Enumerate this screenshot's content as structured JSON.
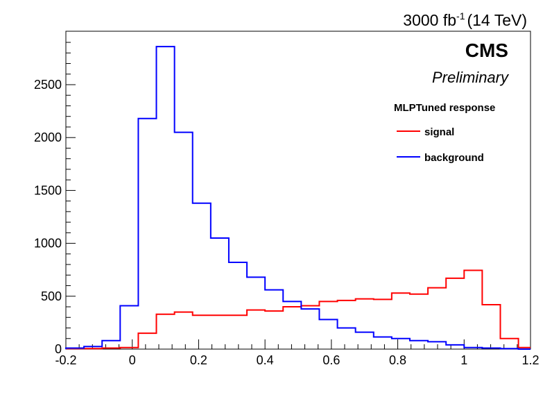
{
  "chart_data": {
    "type": "histogram",
    "title": "",
    "xlabel": "",
    "ylabel": "",
    "xlim": [
      -0.2,
      1.2
    ],
    "ylim": [
      0,
      3000
    ],
    "x_ticks": [
      "-0.2",
      "0",
      "0.2",
      "0.4",
      "0.6",
      "0.8",
      "1",
      "1.2"
    ],
    "y_ticks": [
      "0",
      "500",
      "1000",
      "1500",
      "2000",
      "2500"
    ],
    "bin_edges": [
      -0.2,
      -0.1455,
      -0.0909,
      -0.0364,
      0.0182,
      0.0727,
      0.1273,
      0.1818,
      0.2364,
      0.2909,
      0.3455,
      0.4,
      0.4545,
      0.5091,
      0.5636,
      0.6182,
      0.6727,
      0.7273,
      0.7818,
      0.8364,
      0.8909,
      0.9455,
      1.0,
      1.0545,
      1.1091,
      1.1636,
      1.2
    ],
    "series": [
      {
        "name": "signal",
        "color": "#ff0000",
        "values": [
          5,
          5,
          10,
          15,
          150,
          330,
          350,
          320,
          320,
          320,
          370,
          360,
          400,
          410,
          450,
          460,
          475,
          470,
          530,
          520,
          580,
          670,
          745,
          420,
          100,
          15
        ]
      },
      {
        "name": "background",
        "color": "#0000ff",
        "values": [
          10,
          25,
          80,
          410,
          2180,
          2860,
          2050,
          1380,
          1050,
          820,
          680,
          560,
          450,
          380,
          280,
          200,
          160,
          115,
          100,
          80,
          70,
          40,
          15,
          10,
          5,
          0
        ]
      }
    ],
    "legend": {
      "title": "MLPTuned response",
      "entries": [
        "signal",
        "background"
      ],
      "placement": "top-right"
    },
    "annotations": {
      "luminosity_main": "3000 fb",
      "luminosity_exp": "-1",
      "luminosity_energy": "(14 TeV)",
      "experiment": "CMS",
      "status": "Preliminary"
    },
    "grid": false
  }
}
